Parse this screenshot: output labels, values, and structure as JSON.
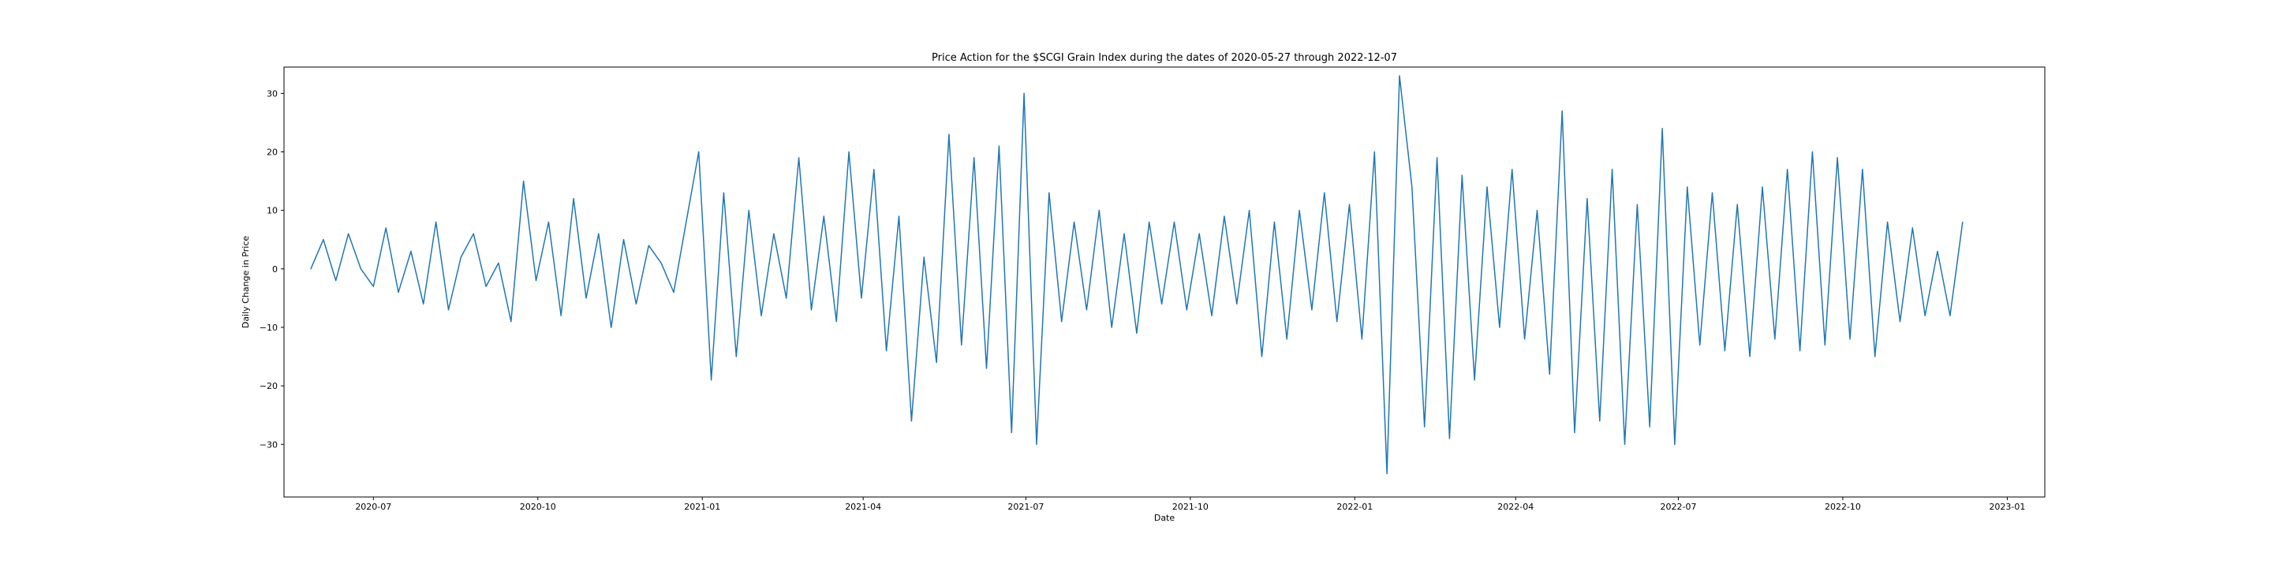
{
  "chart_data": {
    "type": "line",
    "title": "Price Action for the $SCGI Grain Index during the dates of 2020-05-27 through 2022-12-07",
    "xlabel": "Date",
    "ylabel": "Daily Change in Price",
    "xlim": [
      "2020-05-12",
      "2023-01-22"
    ],
    "ylim": [
      -39,
      34.5
    ],
    "x_ticks": [
      {
        "date": "2020-07-01",
        "label": "2020-07"
      },
      {
        "date": "2020-10-01",
        "label": "2020-10"
      },
      {
        "date": "2021-01-01",
        "label": "2021-01"
      },
      {
        "date": "2021-04-01",
        "label": "2021-04"
      },
      {
        "date": "2021-07-01",
        "label": "2021-07"
      },
      {
        "date": "2021-10-01",
        "label": "2021-10"
      },
      {
        "date": "2022-01-01",
        "label": "2022-01"
      },
      {
        "date": "2022-04-01",
        "label": "2022-04"
      },
      {
        "date": "2022-07-01",
        "label": "2022-07"
      },
      {
        "date": "2022-10-01",
        "label": "2022-10"
      },
      {
        "date": "2023-01-01",
        "label": "2023-01"
      }
    ],
    "y_ticks": [
      -30,
      -20,
      -10,
      0,
      10,
      20,
      30
    ],
    "grid": false,
    "line_color": "#1f77b4",
    "series": [
      {
        "x": [
          "2020-05-27",
          "2020-06-03",
          "2020-06-10",
          "2020-06-17",
          "2020-06-24",
          "2020-07-01",
          "2020-07-08",
          "2020-07-15",
          "2020-07-22",
          "2020-07-29",
          "2020-08-05",
          "2020-08-12",
          "2020-08-19",
          "2020-08-26",
          "2020-09-02",
          "2020-09-09",
          "2020-09-16",
          "2020-09-23",
          "2020-09-30",
          "2020-10-07",
          "2020-10-14",
          "2020-10-21",
          "2020-10-28",
          "2020-11-04",
          "2020-11-11",
          "2020-11-18",
          "2020-11-25",
          "2020-12-02",
          "2020-12-09",
          "2020-12-16",
          "2020-12-23",
          "2020-12-30",
          "2021-01-06",
          "2021-01-13",
          "2021-01-20",
          "2021-01-27",
          "2021-02-03",
          "2021-02-10",
          "2021-02-17",
          "2021-02-24",
          "2021-03-03",
          "2021-03-10",
          "2021-03-17",
          "2021-03-24",
          "2021-03-31",
          "2021-04-07",
          "2021-04-14",
          "2021-04-21",
          "2021-04-28",
          "2021-05-05",
          "2021-05-12",
          "2021-05-19",
          "2021-05-26",
          "2021-06-02",
          "2021-06-09",
          "2021-06-16",
          "2021-06-23",
          "2021-06-30",
          "2021-07-07",
          "2021-07-14",
          "2021-07-21",
          "2021-07-28",
          "2021-08-04",
          "2021-08-11",
          "2021-08-18",
          "2021-08-25",
          "2021-09-01",
          "2021-09-08",
          "2021-09-15",
          "2021-09-22",
          "2021-09-29",
          "2021-10-06",
          "2021-10-13",
          "2021-10-20",
          "2021-10-27",
          "2021-11-03",
          "2021-11-10",
          "2021-11-17",
          "2021-11-24",
          "2021-12-01",
          "2021-12-08",
          "2021-12-15",
          "2021-12-22",
          "2021-12-29",
          "2022-01-05",
          "2022-01-12",
          "2022-01-19",
          "2022-01-26",
          "2022-02-02",
          "2022-02-09",
          "2022-02-16",
          "2022-02-23",
          "2022-03-02",
          "2022-03-09",
          "2022-03-16",
          "2022-03-23",
          "2022-03-30",
          "2022-04-06",
          "2022-04-13",
          "2022-04-20",
          "2022-04-27",
          "2022-05-04",
          "2022-05-11",
          "2022-05-18",
          "2022-05-25",
          "2022-06-01",
          "2022-06-08",
          "2022-06-15",
          "2022-06-22",
          "2022-06-29",
          "2022-07-06",
          "2022-07-13",
          "2022-07-20",
          "2022-07-27",
          "2022-08-03",
          "2022-08-10",
          "2022-08-17",
          "2022-08-24",
          "2022-08-31",
          "2022-09-07",
          "2022-09-14",
          "2022-09-21",
          "2022-09-28",
          "2022-10-05",
          "2022-10-12",
          "2022-10-19",
          "2022-10-26",
          "2022-11-02",
          "2022-11-09",
          "2022-11-16",
          "2022-11-23",
          "2022-11-30",
          "2022-12-07"
        ],
        "y": [
          0,
          5,
          -2,
          6,
          0,
          -3,
          7,
          -4,
          3,
          -6,
          8,
          -7,
          2,
          6,
          -3,
          1,
          -9,
          15,
          -2,
          8,
          -8,
          12,
          -5,
          6,
          -10,
          5,
          -6,
          4,
          1,
          -4,
          8,
          20,
          -19,
          13,
          -15,
          10,
          -8,
          6,
          -5,
          19,
          -7,
          9,
          -9,
          20,
          -5,
          17,
          -14,
          9,
          -26,
          2,
          -16,
          23,
          -13,
          19,
          -17,
          21,
          -28,
          30,
          -30,
          13,
          -9,
          8,
          -7,
          10,
          -10,
          6,
          -11,
          8,
          -6,
          8,
          -7,
          6,
          -8,
          9,
          -6,
          10,
          -15,
          8,
          -12,
          10,
          -7,
          13,
          -9,
          11,
          -12,
          20,
          -35,
          33,
          14,
          -27,
          19,
          -29,
          16,
          -19,
          14,
          -10,
          17,
          -12,
          10,
          -18,
          27,
          -28,
          12,
          -26,
          17,
          -30,
          11,
          -27,
          24,
          -30,
          14,
          -13,
          13,
          -14,
          11,
          -15,
          14,
          -12,
          17,
          -14,
          20,
          -13,
          19,
          -12,
          17,
          -15,
          8,
          -9,
          7,
          -8,
          3,
          -8,
          8
        ]
      }
    ]
  }
}
